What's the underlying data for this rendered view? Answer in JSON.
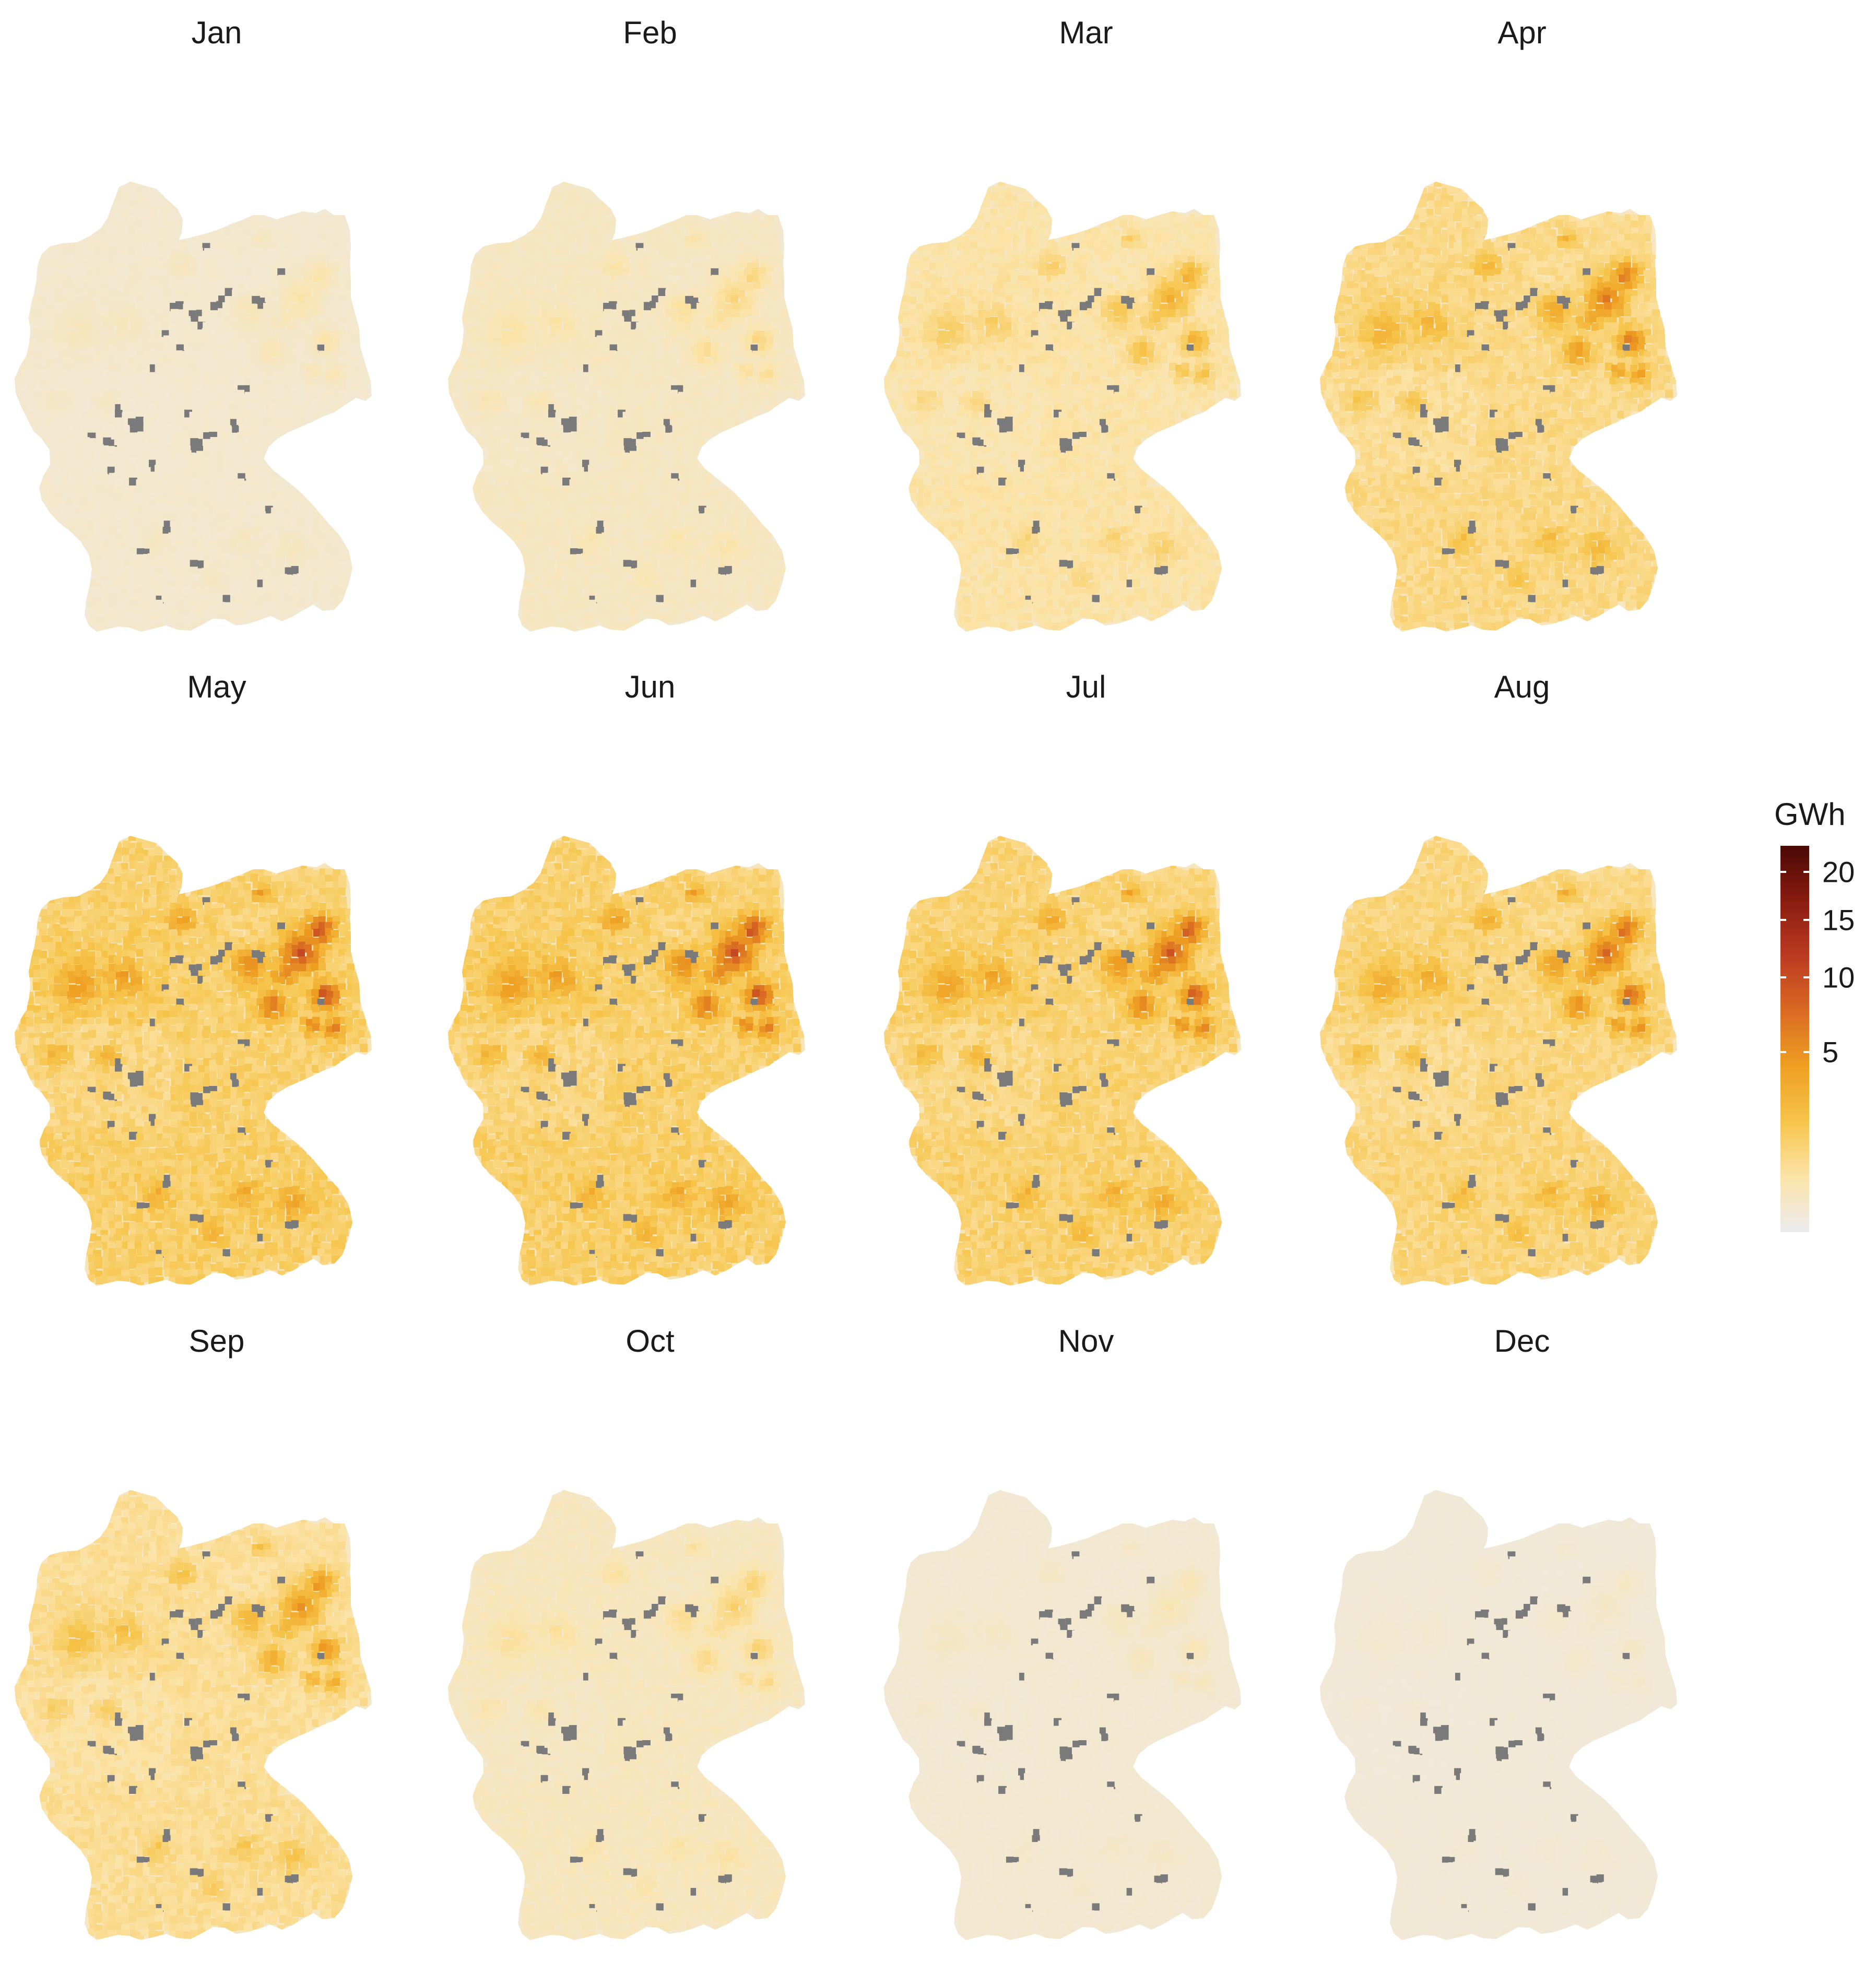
{
  "panels": [
    {
      "title": "Jan",
      "level": 0.1
    },
    {
      "title": "Feb",
      "level": 0.16
    },
    {
      "title": "Mar",
      "level": 0.3
    },
    {
      "title": "Apr",
      "level": 0.44
    },
    {
      "title": "May",
      "level": 0.55
    },
    {
      "title": "Jun",
      "level": 0.55
    },
    {
      "title": "Jul",
      "level": 0.52
    },
    {
      "title": "Aug",
      "level": 0.48
    },
    {
      "title": "Sep",
      "level": 0.38
    },
    {
      "title": "Oct",
      "level": 0.18
    },
    {
      "title": "Nov",
      "level": 0.08
    },
    {
      "title": "Dec",
      "level": 0.05
    }
  ],
  "legend": {
    "title": "GWh",
    "min": 0,
    "max": 23,
    "ticks": [
      {
        "value": 5,
        "label": "5"
      },
      {
        "value": 10,
        "label": "10"
      },
      {
        "value": 15,
        "label": "15"
      },
      {
        "value": 20,
        "label": "20"
      }
    ],
    "colors": [
      "#ecebee",
      "#fbe3a8",
      "#f6c44a",
      "#ee9f22",
      "#da6b22",
      "#bc3b22",
      "#8a1c10",
      "#4b0906"
    ],
    "missing_color": "#7a7a7a"
  }
}
